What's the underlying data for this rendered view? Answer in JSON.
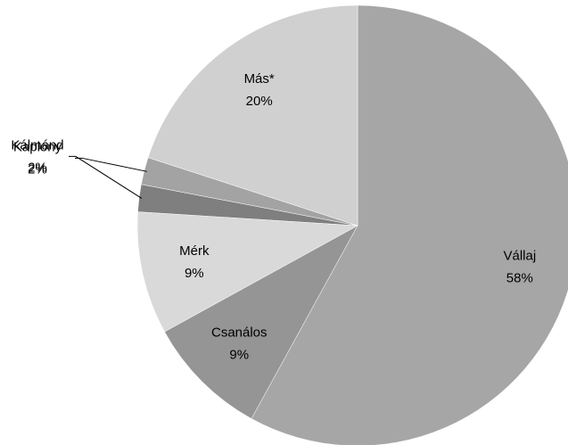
{
  "chart_data": {
    "type": "pie",
    "categories": [
      "Vállaj",
      "Csanálos",
      "Mérk",
      "Kálmánd",
      "Kaplony",
      "Más*"
    ],
    "values": [
      58,
      9,
      9,
      2,
      2,
      20
    ],
    "value_labels": [
      "58%",
      "9%",
      "9%",
      "2%",
      "2%",
      "20%"
    ],
    "colors": [
      "#a6a6a6",
      "#959595",
      "#d9d9d9",
      "#7f7f7f",
      "#a3a3a3",
      "#d0d0d0"
    ]
  }
}
